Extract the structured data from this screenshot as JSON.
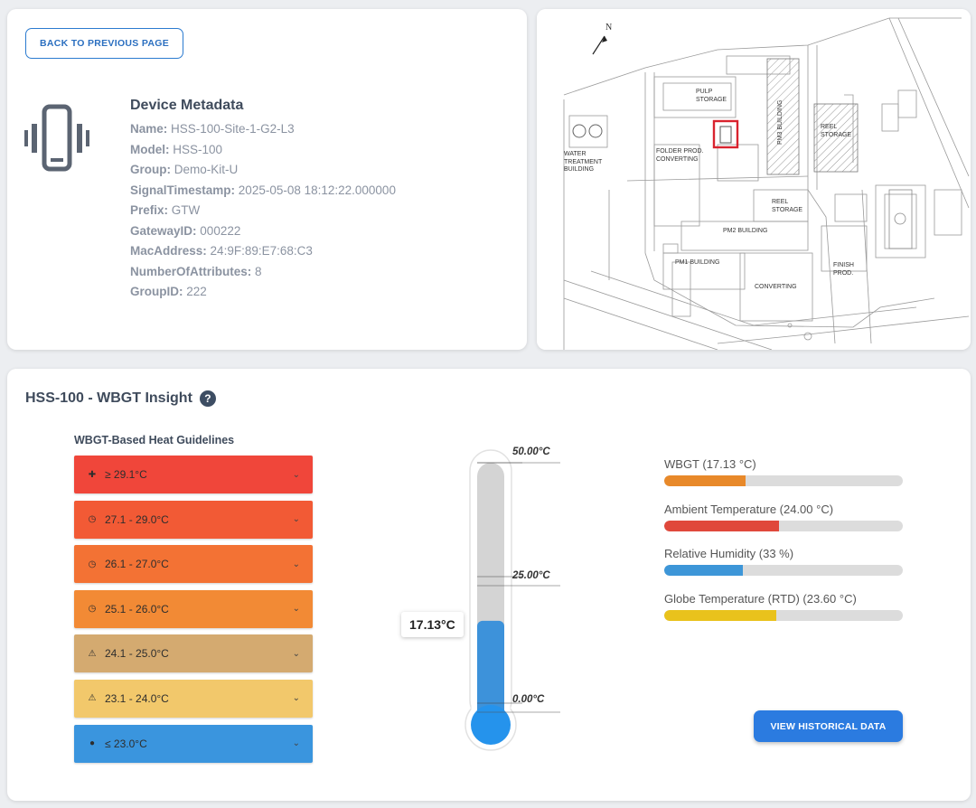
{
  "header": {
    "back_button": "BACK TO PREVIOUS PAGE"
  },
  "metadata": {
    "title": "Device Metadata",
    "fields": [
      {
        "key": "Name:",
        "value": "HSS-100-Site-1-G2-L3"
      },
      {
        "key": "Model:",
        "value": "HSS-100"
      },
      {
        "key": "Group:",
        "value": "Demo-Kit-U"
      },
      {
        "key": "SignalTimestamp:",
        "value": "2025-05-08 18:12:22.000000"
      },
      {
        "key": "Prefix:",
        "value": "GTW"
      },
      {
        "key": "GatewayID:",
        "value": "000222"
      },
      {
        "key": "MacAddress:",
        "value": "24:9F:89:E7:68:C3"
      },
      {
        "key": "NumberOfAttributes:",
        "value": "8"
      },
      {
        "key": "GroupID:",
        "value": "222"
      }
    ]
  },
  "map": {
    "north": "N",
    "labels": {
      "pulp": "PULP STORAGE",
      "pm3": "PM3 BUILDING",
      "reel1": "REEL STORAGE",
      "water": "WATER TREATMENT BUILDING",
      "folder": "FOLDER PROD. CONVERTING",
      "reel2": "REEL STORAGE",
      "pm2": "PM2 BUILDING",
      "pm1": "PM1 BUILDING",
      "converting": "CONVERTING",
      "finish": "FINISH PROD."
    }
  },
  "insight": {
    "title": "HSS-100 - WBGT Insight",
    "help_icon": "question-icon",
    "guidelines_title": "WBGT-Based Heat Guidelines",
    "guidelines": [
      {
        "label": "≥ 29.1°C",
        "icon": "medical-cross-icon",
        "color": "#f0463a"
      },
      {
        "label": "27.1 - 29.0°C",
        "icon": "clock-icon",
        "color": "#f25a35"
      },
      {
        "label": "26.1 - 27.0°C",
        "icon": "clock-icon",
        "color": "#f37234"
      },
      {
        "label": "25.1 - 26.0°C",
        "icon": "clock-icon",
        "color": "#f28a35"
      },
      {
        "label": "24.1 - 25.0°C",
        "icon": "warning-icon",
        "color": "#d4aa70"
      },
      {
        "label": "23.1 - 24.0°C",
        "icon": "warning-icon",
        "color": "#f2c86b"
      },
      {
        "label": "≤ 23.0°C",
        "icon": "droplet-icon",
        "color": "#3a95de"
      }
    ],
    "thermometer": {
      "max_label": "50.00°C",
      "mid_label": "25.00°C",
      "min_label": "0.00°C",
      "max": 50,
      "min": 0,
      "value": 17.13,
      "value_label": "17.13°C"
    },
    "metrics": [
      {
        "label": "WBGT (17.13 °C)",
        "fraction": 0.34,
        "color": "#e8892a"
      },
      {
        "label": "Ambient Temperature (24.00 °C)",
        "fraction": 0.48,
        "color": "#e0483b"
      },
      {
        "label": "Relative Humidity (33 %)",
        "fraction": 0.33,
        "color": "#3d96d8"
      },
      {
        "label": "Globe Temperature (RTD) (23.60 °C)",
        "fraction": 0.47,
        "color": "#e9c21c"
      }
    ],
    "history_button": "VIEW HISTORICAL DATA"
  }
}
